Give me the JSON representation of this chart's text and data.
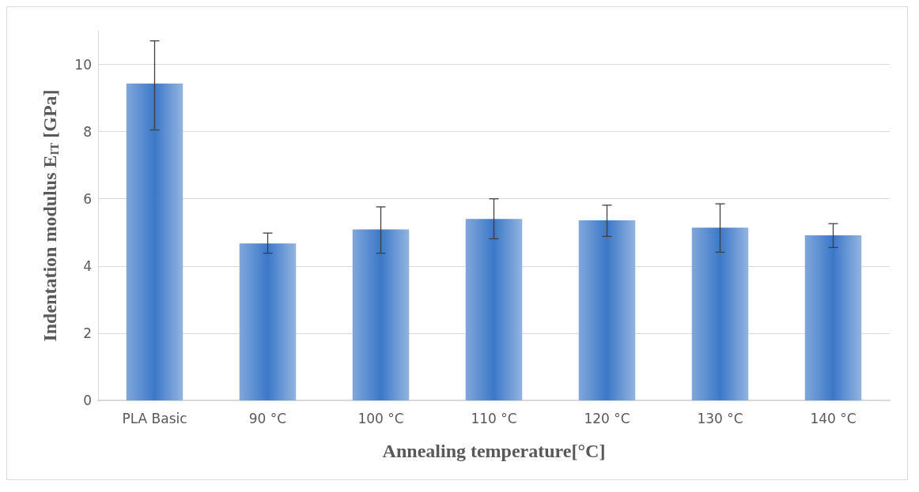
{
  "chart_data": {
    "type": "bar",
    "xlabel": "Annealing temperature[°C]",
    "ylabel": "Indentation modulus E$_{IT}$ [GPa]",
    "categories": [
      "PLA Basic",
      "90 °C",
      "100 °C",
      "110 °C",
      "120 °C",
      "130 °C",
      "140 °C"
    ],
    "values": [
      9.43,
      4.67,
      5.09,
      5.4,
      5.36,
      5.14,
      4.91
    ],
    "errors": [
      [
        8.05,
        10.7
      ],
      [
        4.38,
        4.98
      ],
      [
        4.38,
        5.76
      ],
      [
        4.81,
        6.0
      ],
      [
        4.88,
        5.81
      ],
      [
        4.41,
        5.85
      ],
      [
        4.55,
        5.26
      ]
    ],
    "color": "#3c78c8",
    "ylim": [
      0,
      11
    ],
    "yticks": [
      0,
      2,
      4,
      6,
      8,
      10
    ],
    "grid": "y"
  }
}
